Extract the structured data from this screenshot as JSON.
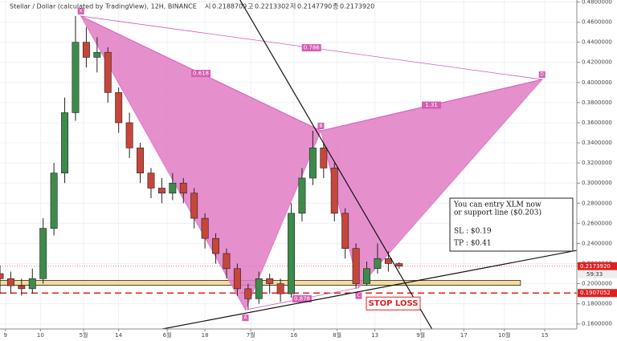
{
  "chart_data": {
    "type": "candlestick",
    "title": "Stellar / Dollar (calculated by TradingView), 12H, BINANCE",
    "header_labels": [
      "시",
      "고",
      "저",
      "종"
    ],
    "header_values": [
      "0.2188709",
      "0.2213302",
      "0.2147790",
      "0.2173920"
    ],
    "x": [
      -31,
      -27,
      -23,
      -19,
      -15,
      -11,
      -7,
      -3,
      1,
      5,
      9,
      13,
      17,
      21,
      25,
      29,
      33,
      37,
      41,
      45,
      49,
      53,
      57,
      61,
      65,
      69,
      73,
      77,
      81,
      85,
      89,
      93,
      97,
      101,
      105,
      109,
      113,
      117
    ],
    "open": [
      0.21,
      0.205,
      0.198,
      0.195,
      0.205,
      0.255,
      0.31,
      0.37,
      0.44,
      0.425,
      0.43,
      0.39,
      0.36,
      0.335,
      0.31,
      0.295,
      0.29,
      0.3,
      0.29,
      0.265,
      0.245,
      0.23,
      0.215,
      0.195,
      0.185,
      0.205,
      0.2,
      0.19,
      0.27,
      0.305,
      0.335,
      0.315,
      0.27,
      0.235,
      0.2,
      0.215,
      0.225,
      0.22
    ],
    "high": [
      0.218,
      0.212,
      0.205,
      0.215,
      0.265,
      0.32,
      0.385,
      0.466,
      0.455,
      0.445,
      0.435,
      0.395,
      0.37,
      0.34,
      0.315,
      0.305,
      0.31,
      0.305,
      0.295,
      0.27,
      0.25,
      0.235,
      0.22,
      0.2,
      0.212,
      0.21,
      0.205,
      0.28,
      0.315,
      0.352,
      0.34,
      0.32,
      0.275,
      0.24,
      0.222,
      0.24,
      0.232,
      0.2213302
    ],
    "low": [
      0.19,
      0.19,
      0.188,
      0.19,
      0.2,
      0.248,
      0.3,
      0.362,
      0.415,
      0.41,
      0.38,
      0.35,
      0.325,
      0.3,
      0.285,
      0.28,
      0.283,
      0.28,
      0.255,
      0.235,
      0.22,
      0.205,
      0.188,
      0.174,
      0.18,
      0.19,
      0.182,
      0.186,
      0.262,
      0.298,
      0.305,
      0.262,
      0.225,
      0.195,
      0.198,
      0.21,
      0.212,
      0.214779
    ],
    "close": [
      0.205,
      0.198,
      0.195,
      0.205,
      0.255,
      0.31,
      0.37,
      0.44,
      0.425,
      0.43,
      0.39,
      0.36,
      0.335,
      0.31,
      0.295,
      0.29,
      0.3,
      0.29,
      0.265,
      0.245,
      0.23,
      0.215,
      0.195,
      0.185,
      0.205,
      0.2,
      0.19,
      0.27,
      0.305,
      0.335,
      0.315,
      0.27,
      0.235,
      0.2,
      0.215,
      0.225,
      0.22,
      0.217392
    ],
    "up_color": "#3d8b4a",
    "down_color": "#c6463a",
    "xlim": [
      -31,
      182
    ],
    "ylim": [
      0.155,
      0.482
    ],
    "xticks": [
      {
        "value": -29,
        "label": "9"
      },
      {
        "value": -16,
        "label": "10"
      },
      {
        "value": 0,
        "label": "5월"
      },
      {
        "value": 13,
        "label": "14"
      },
      {
        "value": 31,
        "label": "6월"
      },
      {
        "value": 45,
        "label": "18"
      },
      {
        "value": 62,
        "label": "7월"
      },
      {
        "value": 78,
        "label": "16"
      },
      {
        "value": 94,
        "label": "8월"
      },
      {
        "value": 108,
        "label": "13"
      },
      {
        "value": 125,
        "label": "9월"
      },
      {
        "value": 141,
        "label": "17"
      },
      {
        "value": 156,
        "label": "10월"
      },
      {
        "value": 171,
        "label": "15"
      }
    ],
    "yticks": [
      {
        "value": 0.16,
        "label": "0.1600000"
      },
      {
        "value": 0.18,
        "label": "0.1800000"
      },
      {
        "value": 0.2,
        "label": "0.2000000"
      },
      {
        "value": 0.22,
        "label": "0.2200000"
      },
      {
        "value": 0.24,
        "label": "0.2400000"
      },
      {
        "value": 0.26,
        "label": "0.2600000"
      },
      {
        "value": 0.28,
        "label": "0.2800000"
      },
      {
        "value": 0.3,
        "label": "0.3000000"
      },
      {
        "value": 0.32,
        "label": "0.3200000"
      },
      {
        "value": 0.34,
        "label": "0.3400000"
      },
      {
        "value": 0.36,
        "label": "0.3600000"
      },
      {
        "value": 0.38,
        "label": "0.3800000"
      },
      {
        "value": 0.4,
        "label": "0.4000000"
      },
      {
        "value": 0.42,
        "label": "0.4200000"
      },
      {
        "value": 0.44,
        "label": "0.4400000"
      },
      {
        "value": 0.46,
        "label": "0.4600000"
      },
      {
        "value": 0.48,
        "label": "0.4800000"
      }
    ],
    "grid": true,
    "pattern": {
      "color": "#e07bc4",
      "points": [
        {
          "label": "X",
          "x": -1,
          "y": 0.466
        },
        {
          "label": "A",
          "x": 60,
          "y": 0.174
        },
        {
          "label": "B",
          "x": 88,
          "y": 0.352
        },
        {
          "label": "C",
          "x": 102,
          "y": 0.196
        },
        {
          "label": "D",
          "x": 170,
          "y": 0.403
        }
      ],
      "ratios": [
        {
          "label": "0.618",
          "from": 0,
          "to": 2
        },
        {
          "label": "0.786",
          "from": 0,
          "to": 4
        },
        {
          "label": "1.31",
          "from": 2,
          "to": 4
        },
        {
          "label": "0.878",
          "from": 1,
          "to": 3
        }
      ]
    },
    "trendlines": [
      {
        "x": [
          58,
          132
        ],
        "y": [
          0.482,
          0.142
        ]
      },
      {
        "x": [
          28,
          198
        ],
        "y": [
          0.1544,
          0.2408
        ]
      }
    ],
    "support_zone": {
      "x": [
        -31,
        162
      ],
      "y": [
        0.1984,
        0.2032
      ],
      "color": "#f6dc9a"
    },
    "stop_loss": {
      "value": 0.1907052,
      "text": "STOP LOSS",
      "color": "#e02020"
    },
    "last_price": {
      "value": 0.217392,
      "label": "0.2173920"
    },
    "countdown": "59:33",
    "note": [
      "You can entry XLM now",
      "or support line ($0.203)",
      "SL : $0.19",
      "TP : $0.41"
    ]
  }
}
